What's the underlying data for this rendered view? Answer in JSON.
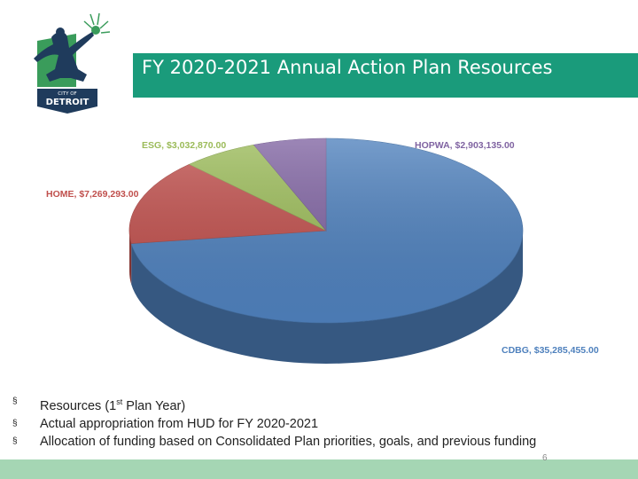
{
  "logo": {
    "small_text": "CITY OF",
    "big_text": "DETROIT",
    "icon": "spirit-of-detroit-logo-icon"
  },
  "slide": {
    "title": "FY 2020-2021 Annual Action Plan Resources",
    "page_number": "6"
  },
  "bullets": {
    "marker": "§",
    "items": [
      {
        "before": "Resources (1",
        "sup": "st",
        "after": " Plan Year)"
      },
      {
        "before": "Actual appropriation from HUD for FY 2020-2021",
        "sup": "",
        "after": ""
      },
      {
        "before": "Allocation of funding based on Consolidated Plan priorities, goals, and previous funding",
        "sup": "",
        "after": ""
      }
    ]
  },
  "colors": {
    "title_bar": "#1a9b7b",
    "footer_bar": "#a5d6b4",
    "logo_green": "#3a9c5b",
    "logo_navy": "#1f3b5c"
  },
  "chart_data": {
    "type": "pie",
    "title": "",
    "style": "3d",
    "slices": [
      {
        "label": "CDBG",
        "value": 35285455.0,
        "text": "CDBG, $35,285,455.00",
        "color": "#4f81bd",
        "label_color": "#4f81bd"
      },
      {
        "label": "HOME",
        "value": 7269293.0,
        "text": "HOME, $7,269,293.00",
        "color": "#c0504d",
        "label_color": "#c0504d"
      },
      {
        "label": "ESG",
        "value": 3032870.0,
        "text": "ESG, $3,032,870.00",
        "color": "#9bbb59",
        "label_color": "#9bbb59"
      },
      {
        "label": "HOPWA",
        "value": 2903135.0,
        "text": "HOPWA, $2,903,135.00",
        "color": "#8064a2",
        "label_color": "#8064a2"
      }
    ]
  }
}
